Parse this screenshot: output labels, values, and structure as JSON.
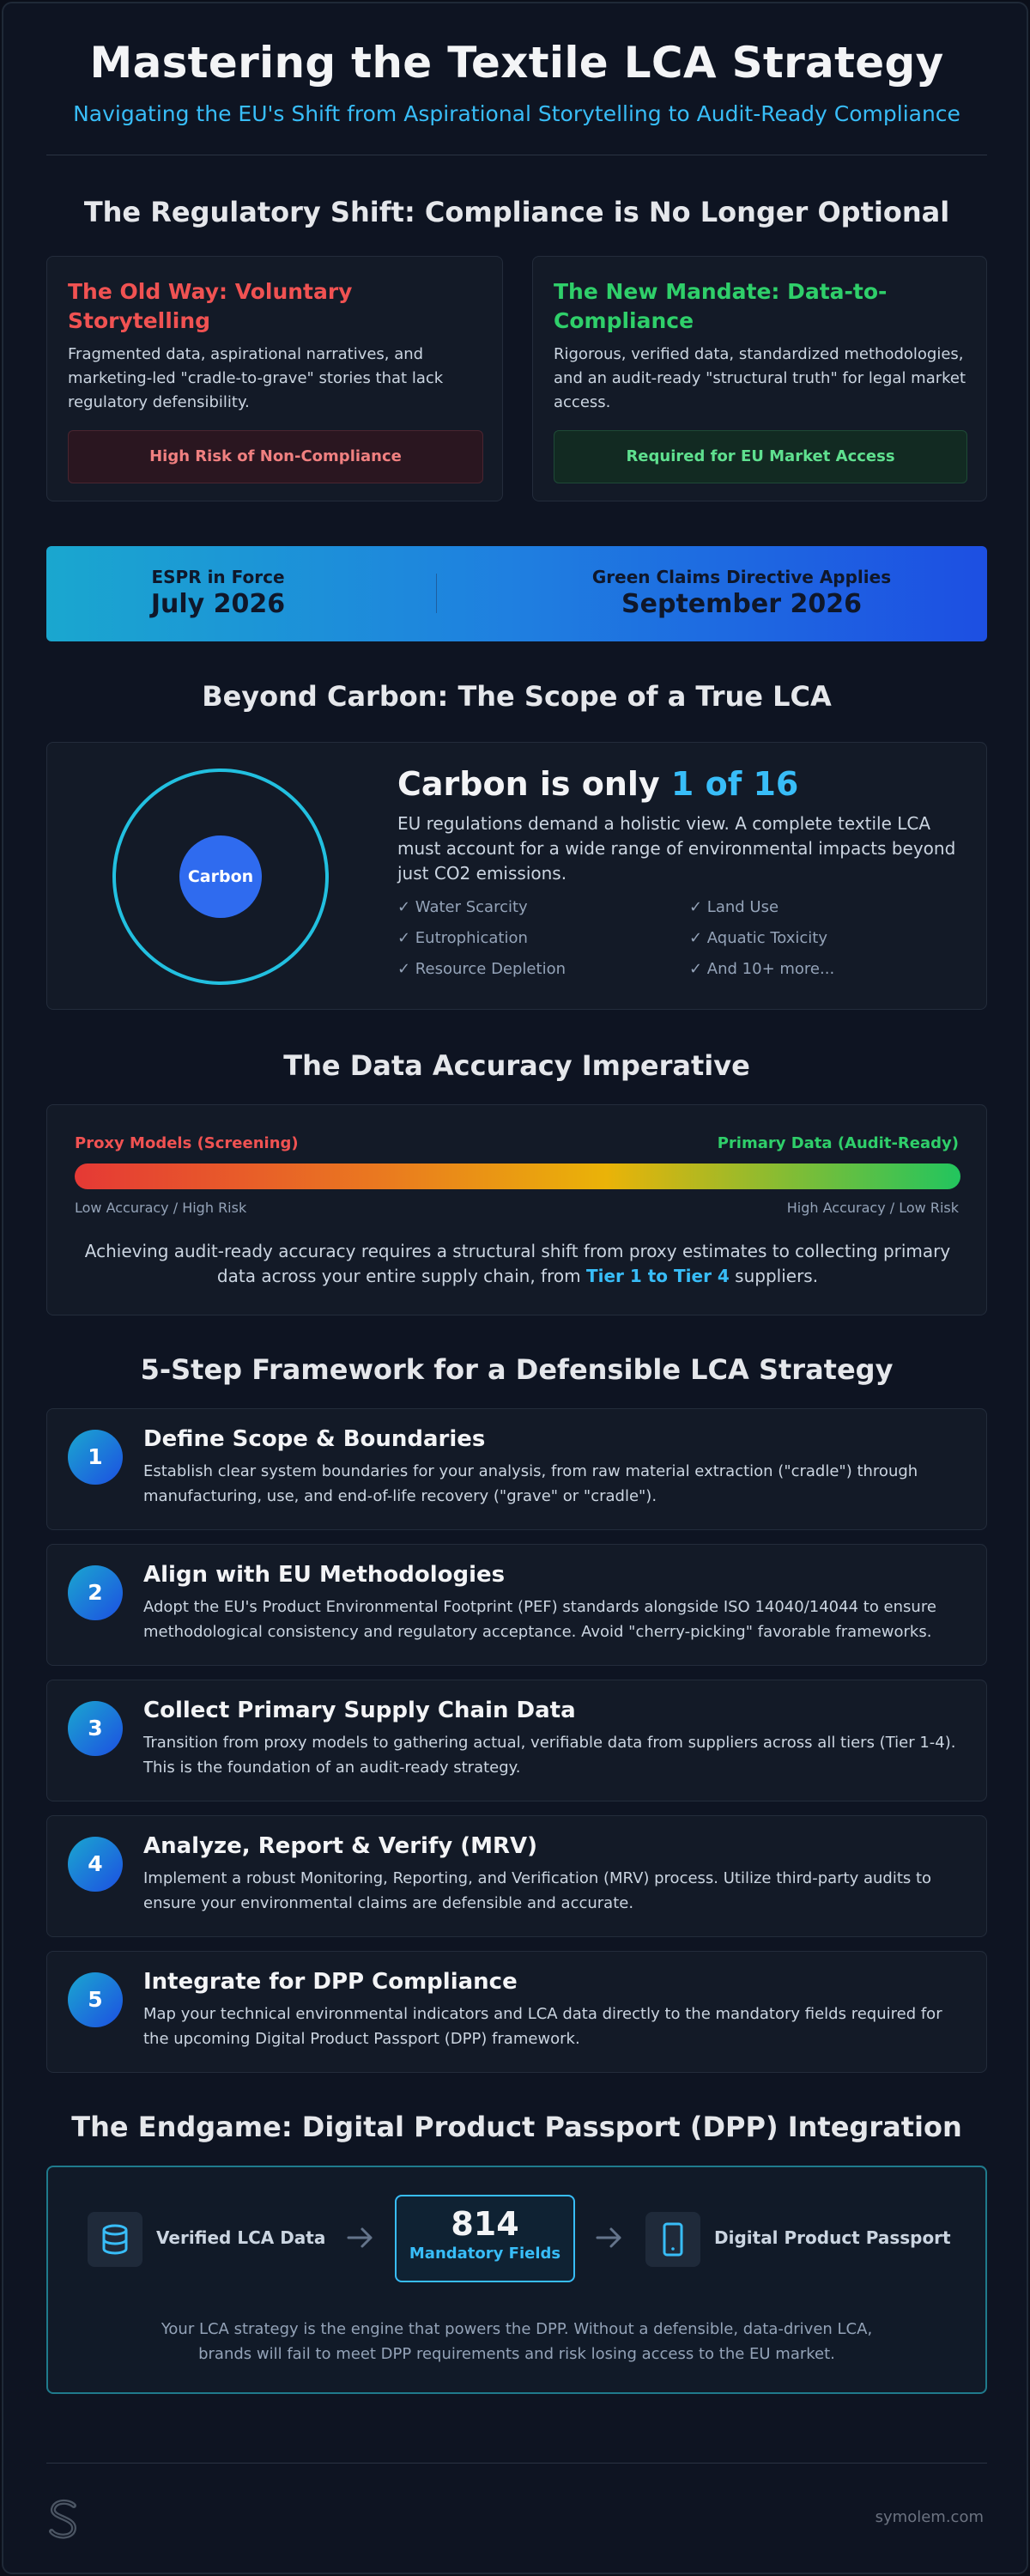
{
  "header": {
    "title": "Mastering the Textile LCA Strategy",
    "subtitle": "Navigating the EU's Shift from Aspirational Storytelling to Audit-Ready Compliance"
  },
  "regulatory": {
    "title": "The Regulatory Shift: Compliance is No Longer Optional",
    "old_way": {
      "title": "The Old Way: Voluntary Storytelling",
      "body": "Fragmented data, aspirational narratives, and marketing-led \"cradle-to-grave\" stories that lack regulatory defensibility.",
      "badge": "High Risk of Non-Compliance",
      "color": "#f05252"
    },
    "new_mandate": {
      "title": "The New Mandate: Data-to-Compliance",
      "body": "Rigorous, verified data, standardized methodologies, and an audit-ready \"structural truth\" for legal market access.",
      "badge": "Required for EU Market Access",
      "color": "#22c55e"
    }
  },
  "timeline": {
    "espr_label": "ESPR in Force",
    "espr_date": "July 2026",
    "gcd_label": "Green Claims Directive Applies",
    "gcd_date": "September 2026"
  },
  "scope": {
    "title": "Beyond Carbon: The Scope of a True LCA",
    "circle_label": "Carbon",
    "headline_prefix": "Carbon is only ",
    "headline_highlight": "1 of 16",
    "body": "EU regulations demand a holistic view. A complete textile LCA must account for a wide range of environmental impacts beyond just CO2 emissions.",
    "impacts": [
      "✓ Water Scarcity",
      "✓ Land Use",
      "✓ Eutrophication",
      "✓ Aquatic Toxicity",
      "✓ Resource Depletion",
      "✓ And 10+ more..."
    ]
  },
  "accuracy": {
    "title": "The Data Accuracy Imperative",
    "left_label": "Proxy Models (Screening)",
    "right_label": "Primary Data (Audit-Ready)",
    "left_caption": "Low Accuracy / High Risk",
    "right_caption": "High Accuracy / Low Risk",
    "body_prefix": "Achieving audit-ready accuracy requires a structural shift from proxy estimates to collecting primary data across your entire supply chain, from ",
    "body_highlight": "Tier 1 to Tier 4",
    "body_suffix": " suppliers."
  },
  "framework": {
    "title": "5-Step Framework for a Defensible LCA Strategy",
    "steps": [
      {
        "num": "1",
        "title": "Define Scope & Boundaries",
        "desc": "Establish clear system boundaries for your analysis, from raw material extraction (\"cradle\") through manufacturing, use, and end-of-life recovery (\"grave\" or \"cradle\")."
      },
      {
        "num": "2",
        "title": "Align with EU Methodologies",
        "desc": "Adopt the EU's Product Environmental Footprint (PEF) standards alongside ISO 14040/14044 to ensure methodological consistency and regulatory acceptance. Avoid \"cherry-picking\" favorable frameworks."
      },
      {
        "num": "3",
        "title": "Collect Primary Supply Chain Data",
        "desc": "Transition from proxy models to gathering actual, verifiable data from suppliers across all tiers (Tier 1-4). This is the foundation of an audit-ready strategy."
      },
      {
        "num": "4",
        "title": "Analyze, Report & Verify (MRV)",
        "desc": "Implement a robust Monitoring, Reporting, and Verification (MRV) process. Utilize third-party audits to ensure your environmental claims are defensible and accurate."
      },
      {
        "num": "5",
        "title": "Integrate for DPP Compliance",
        "desc": "Map your technical environmental indicators and LCA data directly to the mandatory fields required for the upcoming Digital Product Passport (DPP) framework."
      }
    ]
  },
  "dpp": {
    "title": "The Endgame: Digital Product Passport (DPP) Integration",
    "source_label": "Verified LCA Data",
    "source_icon": "database-icon",
    "fields_count": "814",
    "fields_label": "Mandatory Fields",
    "target_label": "Digital Product Passport",
    "target_icon": "mobile-device-icon",
    "body": "Your LCA strategy is the engine that powers the DPP. Without a defensible, data-driven LCA, brands will fail to meet DPP requirements and risk losing access to the EU market."
  },
  "footer": {
    "site": "symolem.com"
  },
  "colors": {
    "accent": "#38bdf8",
    "danger": "#f05252",
    "success": "#22c55e"
  }
}
